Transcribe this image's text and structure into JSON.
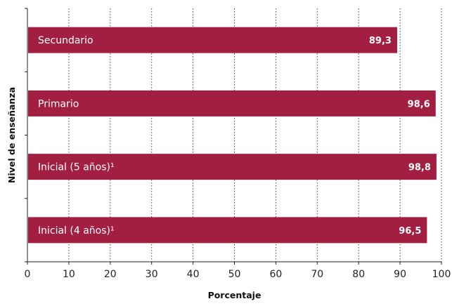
{
  "colors": {
    "bar": "#A31F42",
    "grid": "#444444",
    "axis": "#222222"
  },
  "chart_data": {
    "type": "bar",
    "orientation": "horizontal",
    "title": "",
    "xlabel": "Porcentaje",
    "ylabel": "Nivel de enseñanza",
    "xlim": [
      0,
      100
    ],
    "xticks": [
      "0",
      "10",
      "20",
      "30",
      "40",
      "50",
      "60",
      "70",
      "80",
      "90",
      "100"
    ],
    "grid": "vertical-dotted",
    "categories": [
      "Secundario",
      "Primario",
      "Inicial (5 años)¹",
      "Inicial (4 años)¹"
    ],
    "values": [
      89.3,
      98.6,
      98.8,
      96.5
    ],
    "value_labels": [
      "89,3",
      "98,6",
      "98,8",
      "96,5"
    ]
  }
}
